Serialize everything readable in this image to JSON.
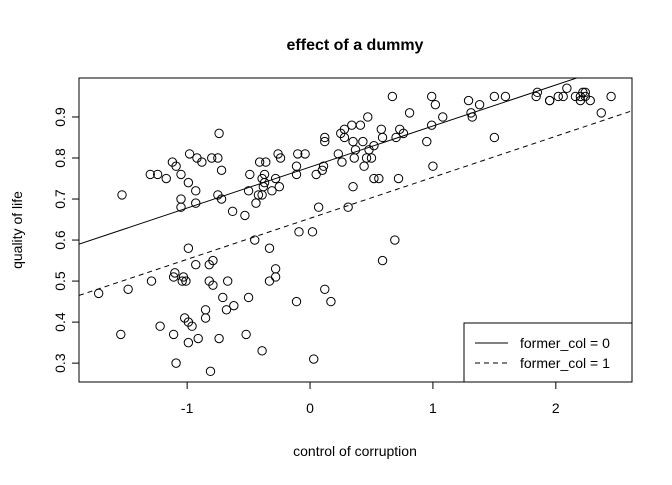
{
  "chart_data": {
    "type": "scatter",
    "title": "effect of a dummy",
    "xlabel": "control of corruption",
    "ylabel": "quality of life",
    "xlim": [
      -1.88,
      2.62
    ],
    "ylim": [
      0.254,
      0.995
    ],
    "xticks": [
      -1,
      0,
      1,
      2
    ],
    "xtick_labels": [
      "-1",
      "0",
      "1",
      "2"
    ],
    "yticks": [
      0.3,
      0.4,
      0.5,
      0.6,
      0.7,
      0.8,
      0.9
    ],
    "ytick_labels": [
      "0.3",
      "0.4",
      "0.5",
      "0.6",
      "0.7",
      "0.8",
      "0.9"
    ],
    "grid": false,
    "legend_position": "bottom-right",
    "marker": "open-circle",
    "color": "#000000",
    "points": [
      [
        -1.53,
        0.71
      ],
      [
        -1.3,
        0.76
      ],
      [
        -1.24,
        0.76
      ],
      [
        -1.17,
        0.75
      ],
      [
        -1.12,
        0.79
      ],
      [
        -1.09,
        0.78
      ],
      [
        -1.05,
        0.76
      ],
      [
        -1.05,
        0.7
      ],
      [
        -0.99,
        0.74
      ],
      [
        -1.05,
        0.68
      ],
      [
        -0.93,
        0.72
      ],
      [
        -0.93,
        0.69
      ],
      [
        -0.98,
        0.81
      ],
      [
        -0.92,
        0.8
      ],
      [
        -0.88,
        0.79
      ],
      [
        -0.8,
        0.8
      ],
      [
        -0.75,
        0.8
      ],
      [
        -0.74,
        0.86
      ],
      [
        -0.72,
        0.77
      ],
      [
        -0.75,
        0.71
      ],
      [
        -0.72,
        0.7
      ],
      [
        -0.63,
        0.67
      ],
      [
        -0.53,
        0.66
      ],
      [
        -0.5,
        0.72
      ],
      [
        -0.49,
        0.76
      ],
      [
        -0.44,
        0.69
      ],
      [
        -0.41,
        0.79
      ],
      [
        -0.39,
        0.75
      ],
      [
        -0.37,
        0.76
      ],
      [
        -0.36,
        0.79
      ],
      [
        -0.42,
        0.71
      ],
      [
        -0.37,
        0.74
      ],
      [
        -0.39,
        0.71
      ],
      [
        -0.38,
        0.73
      ],
      [
        -0.31,
        0.72
      ],
      [
        -0.25,
        0.73
      ],
      [
        -0.24,
        0.8
      ],
      [
        -0.28,
        0.75
      ],
      [
        -0.26,
        0.81
      ],
      [
        -0.1,
        0.81
      ],
      [
        -0.04,
        0.81
      ],
      [
        -0.11,
        0.76
      ],
      [
        -0.11,
        0.78
      ],
      [
        0.11,
        0.78
      ],
      [
        0.12,
        0.84
      ],
      [
        0.12,
        0.85
      ],
      [
        0.23,
        0.81
      ],
      [
        0.26,
        0.79
      ],
      [
        0.28,
        0.85
      ],
      [
        0.25,
        0.86
      ],
      [
        0.35,
        0.84
      ],
      [
        0.28,
        0.87
      ],
      [
        0.34,
        0.88
      ],
      [
        0.37,
        0.82
      ],
      [
        0.48,
        0.82
      ],
      [
        0.43,
        0.84
      ],
      [
        0.47,
        0.9
      ],
      [
        0.41,
        0.88
      ],
      [
        0.46,
        0.8
      ],
      [
        0.58,
        0.87
      ],
      [
        0.59,
        0.85
      ],
      [
        0.52,
        0.83
      ],
      [
        0.67,
        0.95
      ],
      [
        0.73,
        0.87
      ],
      [
        0.76,
        0.86
      ],
      [
        0.7,
        0.85
      ],
      [
        0.81,
        0.91
      ],
      [
        0.95,
        0.84
      ],
      [
        0.99,
        0.95
      ],
      [
        0.99,
        0.88
      ],
      [
        1.0,
        0.78
      ],
      [
        1.02,
        0.93
      ],
      [
        1.08,
        0.9
      ],
      [
        1.29,
        0.94
      ],
      [
        1.31,
        0.91
      ],
      [
        1.32,
        0.9
      ],
      [
        1.38,
        0.93
      ],
      [
        1.5,
        0.95
      ],
      [
        1.59,
        0.95
      ],
      [
        1.84,
        0.95
      ],
      [
        1.85,
        0.96
      ],
      [
        1.95,
        0.94
      ],
      [
        1.95,
        0.94
      ],
      [
        2.02,
        0.95
      ],
      [
        2.06,
        0.95
      ],
      [
        2.09,
        0.97
      ],
      [
        2.16,
        0.95
      ],
      [
        2.2,
        0.95
      ],
      [
        2.2,
        0.94
      ],
      [
        2.22,
        0.96
      ],
      [
        2.24,
        0.95
      ],
      [
        2.24,
        0.96
      ],
      [
        2.28,
        0.94
      ],
      [
        2.37,
        0.91
      ],
      [
        2.45,
        0.95
      ],
      [
        -1.72,
        0.47
      ],
      [
        -1.48,
        0.48
      ],
      [
        -1.29,
        0.5
      ],
      [
        -1.1,
        0.52
      ],
      [
        -1.11,
        0.51
      ],
      [
        -1.03,
        0.51
      ],
      [
        -1.04,
        0.5
      ],
      [
        -1.01,
        0.5
      ],
      [
        -0.99,
        0.58
      ],
      [
        -0.93,
        0.54
      ],
      [
        -0.82,
        0.54
      ],
      [
        -0.79,
        0.55
      ],
      [
        -0.82,
        0.5
      ],
      [
        -0.79,
        0.49
      ],
      [
        -0.67,
        0.5
      ],
      [
        -0.71,
        0.46
      ],
      [
        -0.5,
        0.46
      ],
      [
        -0.68,
        0.43
      ],
      [
        -0.62,
        0.44
      ],
      [
        -0.85,
        0.43
      ],
      [
        -0.85,
        0.41
      ],
      [
        -1.02,
        0.41
      ],
      [
        -0.99,
        0.4
      ],
      [
        -0.96,
        0.39
      ],
      [
        -1.22,
        0.39
      ],
      [
        -1.54,
        0.37
      ],
      [
        -1.11,
        0.37
      ],
      [
        -0.99,
        0.35
      ],
      [
        -0.91,
        0.36
      ],
      [
        -0.74,
        0.36
      ],
      [
        -0.52,
        0.37
      ],
      [
        -0.39,
        0.33
      ],
      [
        -1.09,
        0.3
      ],
      [
        -0.81,
        0.28
      ],
      [
        0.03,
        0.31
      ],
      [
        -0.45,
        0.6
      ],
      [
        -0.33,
        0.58
      ],
      [
        -0.28,
        0.53
      ],
      [
        -0.28,
        0.51
      ],
      [
        -0.33,
        0.5
      ],
      [
        -0.11,
        0.45
      ],
      [
        0.12,
        0.48
      ],
      [
        0.17,
        0.45
      ],
      [
        -0.09,
        0.62
      ],
      [
        0.02,
        0.62
      ],
      [
        0.07,
        0.68
      ],
      [
        0.31,
        0.68
      ],
      [
        0.35,
        0.73
      ],
      [
        0.59,
        0.55
      ],
      [
        0.69,
        0.6
      ],
      [
        0.05,
        0.76
      ],
      [
        0.1,
        0.77
      ],
      [
        0.44,
        0.78
      ],
      [
        0.5,
        0.8
      ],
      [
        0.52,
        0.75
      ],
      [
        0.56,
        0.75
      ],
      [
        0.72,
        0.75
      ],
      [
        0.36,
        0.8
      ],
      [
        1.5,
        0.85
      ]
    ],
    "fit_lines": [
      {
        "name": "former_col = 0",
        "intercept": 0.778,
        "slope": 0.1,
        "style": "solid"
      },
      {
        "name": "former_col = 1",
        "intercept": 0.653,
        "slope": 0.1,
        "style": "dashed"
      }
    ],
    "legend": [
      "former_col = 0",
      "former_col = 1"
    ]
  }
}
